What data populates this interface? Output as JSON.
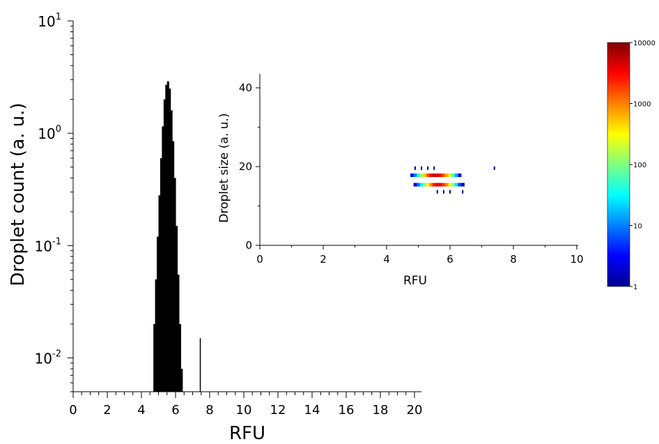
{
  "chart_data": [
    {
      "type": "bar",
      "role": "main histogram",
      "xlabel": "RFU",
      "ylabel": "Droplet count (a. u.)",
      "xlim": [
        0,
        20.5
      ],
      "x_ticks": [
        0,
        2,
        4,
        6,
        8,
        10,
        12,
        14,
        16,
        18,
        20
      ],
      "y_scale": "log",
      "ylim": [
        0.005,
        10
      ],
      "y_ticks": [
        {
          "value": 0.01,
          "base": "10",
          "exp": "-2"
        },
        {
          "value": 0.1,
          "base": "10",
          "exp": "-1"
        },
        {
          "value": 1,
          "base": "10",
          "exp": "0"
        },
        {
          "value": 10,
          "base": "10",
          "exp": "1"
        }
      ],
      "bar_color": "#000000",
      "bin_width": 0.1,
      "x": [
        4.75,
        4.85,
        4.95,
        5.05,
        5.15,
        5.25,
        5.35,
        5.45,
        5.55,
        5.65,
        5.75,
        5.85,
        5.95,
        6.05,
        6.15,
        6.25,
        6.35,
        7.45
      ],
      "values": [
        0.02,
        0.05,
        0.12,
        0.28,
        0.6,
        1.15,
        2.0,
        2.7,
        2.9,
        2.5,
        1.6,
        0.85,
        0.4,
        0.15,
        0.055,
        0.02,
        0.008,
        0.015
      ]
    },
    {
      "type": "heatmap",
      "role": "inset 2D histogram",
      "xlabel": "RFU",
      "ylabel": "Droplet size (a. u.)",
      "xlim": [
        0,
        10
      ],
      "ylim": [
        0,
        44
      ],
      "x_ticks": [
        0,
        2,
        4,
        6,
        8,
        10
      ],
      "y_ticks": [
        0,
        20,
        40
      ],
      "cell_width": 0.1,
      "cell_height": 0.9,
      "grid": false,
      "cells": [
        {
          "x": 4.8,
          "y": 17.8,
          "v": 3
        },
        {
          "x": 4.9,
          "y": 17.8,
          "v": 10
        },
        {
          "x": 5.0,
          "y": 17.8,
          "v": 40
        },
        {
          "x": 5.1,
          "y": 17.8,
          "v": 150
        },
        {
          "x": 5.2,
          "y": 17.8,
          "v": 500
        },
        {
          "x": 5.3,
          "y": 17.8,
          "v": 1500
        },
        {
          "x": 5.4,
          "y": 17.8,
          "v": 3500
        },
        {
          "x": 5.5,
          "y": 17.8,
          "v": 5000
        },
        {
          "x": 5.6,
          "y": 17.8,
          "v": 4500
        },
        {
          "x": 5.7,
          "y": 17.8,
          "v": 3000
        },
        {
          "x": 5.8,
          "y": 17.8,
          "v": 1500
        },
        {
          "x": 5.9,
          "y": 17.8,
          "v": 600
        },
        {
          "x": 6.0,
          "y": 17.8,
          "v": 200
        },
        {
          "x": 6.1,
          "y": 17.8,
          "v": 60
        },
        {
          "x": 6.2,
          "y": 17.8,
          "v": 15
        },
        {
          "x": 6.3,
          "y": 17.8,
          "v": 3
        },
        {
          "x": 4.9,
          "y": 15.4,
          "v": 2
        },
        {
          "x": 5.0,
          "y": 15.4,
          "v": 8
        },
        {
          "x": 5.1,
          "y": 15.4,
          "v": 30
        },
        {
          "x": 5.2,
          "y": 15.4,
          "v": 100
        },
        {
          "x": 5.3,
          "y": 15.4,
          "v": 350
        },
        {
          "x": 5.4,
          "y": 15.4,
          "v": 1000
        },
        {
          "x": 5.5,
          "y": 15.4,
          "v": 2500
        },
        {
          "x": 5.6,
          "y": 15.4,
          "v": 4000
        },
        {
          "x": 5.7,
          "y": 15.4,
          "v": 3500
        },
        {
          "x": 5.8,
          "y": 15.4,
          "v": 2000
        },
        {
          "x": 5.9,
          "y": 15.4,
          "v": 900
        },
        {
          "x": 6.0,
          "y": 15.4,
          "v": 300
        },
        {
          "x": 6.1,
          "y": 15.4,
          "v": 90
        },
        {
          "x": 6.2,
          "y": 15.4,
          "v": 25
        },
        {
          "x": 6.3,
          "y": 15.4,
          "v": 6
        },
        {
          "x": 6.4,
          "y": 15.4,
          "v": 2
        },
        {
          "x": 4.9,
          "y": 19.6,
          "v": 1
        },
        {
          "x": 5.1,
          "y": 19.6,
          "v": 1
        },
        {
          "x": 5.3,
          "y": 19.6,
          "v": 1
        },
        {
          "x": 5.5,
          "y": 19.6,
          "v": 1
        },
        {
          "x": 7.4,
          "y": 19.6,
          "v": 1
        },
        {
          "x": 5.6,
          "y": 13.6,
          "v": 1
        },
        {
          "x": 5.8,
          "y": 13.6,
          "v": 1
        },
        {
          "x": 6.0,
          "y": 13.6,
          "v": 1
        },
        {
          "x": 6.4,
          "y": 13.6,
          "v": 1
        }
      ],
      "colorbar": {
        "scale": "log",
        "min": 1,
        "max": 10000,
        "tick_labels": [
          "10000",
          "1000",
          "100",
          "10",
          "1"
        ],
        "tick_values": [
          10000,
          1000,
          100,
          10,
          1
        ],
        "colormap": "jet",
        "colors": [
          "#00008f",
          "#0000ff",
          "#0080ff",
          "#00ffff",
          "#80ff80",
          "#ffff00",
          "#ff8000",
          "#ff0000",
          "#800000"
        ]
      }
    }
  ]
}
